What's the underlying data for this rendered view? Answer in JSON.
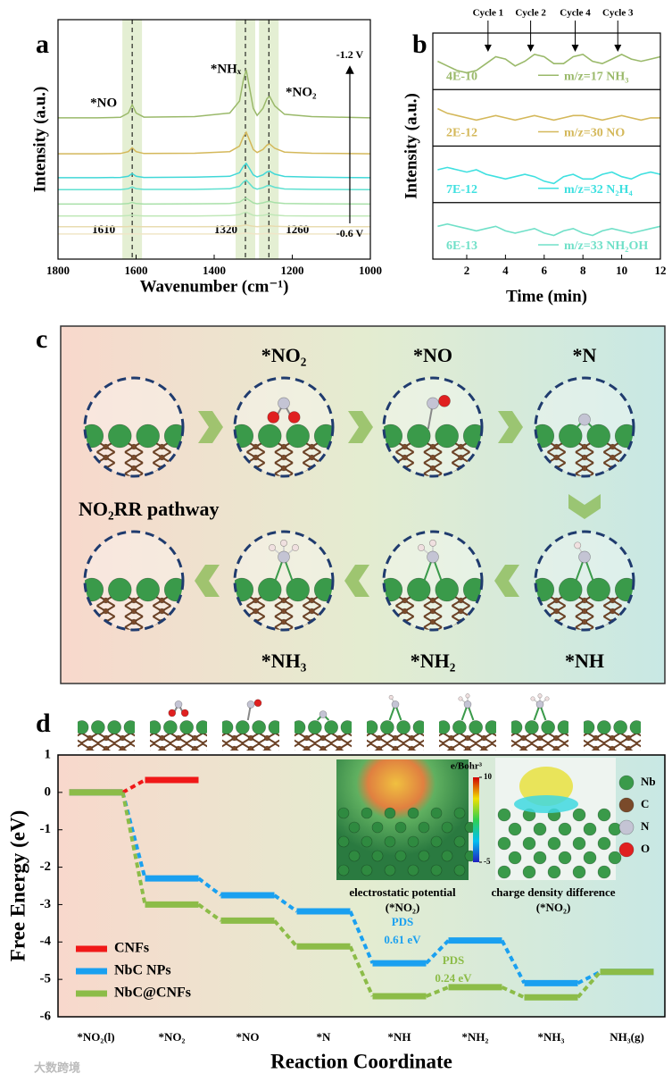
{
  "chart_data": [
    {
      "label": "a",
      "type": "line",
      "xlabel": "Wavenumber (cm⁻¹)",
      "ylabel": "Intensity (a.u.)",
      "xlim": [
        1800,
        1000
      ],
      "xticks": [
        1800,
        1600,
        1400,
        1200,
        1000
      ],
      "ylim": [
        0,
        10
      ],
      "peaks": [
        1610,
        1320,
        1260
      ],
      "peak_labels": [
        "*NO",
        "*NHₓ",
        "*NO₂"
      ],
      "potentials": [
        "-1.2 V",
        "-0.6 V"
      ],
      "x": [
        1800,
        1700,
        1640,
        1620,
        1610,
        1600,
        1580,
        1450,
        1360,
        1335,
        1325,
        1318,
        1310,
        1300,
        1290,
        1275,
        1265,
        1258,
        1245,
        1220,
        1150,
        1000
      ],
      "series": [
        {
          "color": "#9ab96a",
          "values": [
            5.9,
            5.9,
            5.92,
            6.1,
            6.45,
            6.1,
            5.93,
            5.95,
            6.1,
            6.6,
            7.5,
            7.9,
            7.2,
            6.3,
            6.0,
            6.3,
            6.7,
            6.8,
            6.4,
            6.05,
            5.95,
            5.9
          ]
        },
        {
          "color": "#d4b85a",
          "values": [
            4.4,
            4.4,
            4.41,
            4.49,
            4.65,
            4.49,
            4.41,
            4.42,
            4.49,
            4.72,
            5.12,
            5.3,
            4.99,
            4.58,
            4.45,
            4.58,
            4.76,
            4.81,
            4.63,
            4.47,
            4.42,
            4.4
          ]
        },
        {
          "color": "#40d8d8",
          "values": [
            3.4,
            3.4,
            3.41,
            3.46,
            3.57,
            3.46,
            3.41,
            3.42,
            3.46,
            3.61,
            3.88,
            4.0,
            3.79,
            3.52,
            3.43,
            3.52,
            3.64,
            3.67,
            3.55,
            3.45,
            3.42,
            3.4
          ]
        },
        {
          "color": "#5fe0d0",
          "values": [
            2.9,
            2.9,
            2.9,
            2.94,
            3.01,
            2.94,
            2.91,
            2.91,
            2.94,
            3.04,
            3.22,
            3.3,
            3.16,
            2.98,
            2.92,
            2.98,
            3.06,
            3.08,
            3.0,
            2.93,
            2.91,
            2.9
          ]
        },
        {
          "color": "#a8e0a8",
          "values": [
            2.3,
            2.3,
            2.3,
            2.32,
            2.37,
            2.32,
            2.3,
            2.31,
            2.32,
            2.38,
            2.49,
            2.54,
            2.46,
            2.35,
            2.31,
            2.35,
            2.4,
            2.41,
            2.36,
            2.32,
            2.31,
            2.3
          ]
        },
        {
          "color": "#c0e8b8",
          "values": [
            1.8,
            1.8,
            1.8,
            1.82,
            1.84,
            1.82,
            1.8,
            1.8,
            1.82,
            1.86,
            1.93,
            1.96,
            1.9,
            1.83,
            1.81,
            1.83,
            1.86,
            1.87,
            1.84,
            1.81,
            1.8,
            1.8
          ]
        },
        {
          "color": "#e8dcb0",
          "values": [
            1.35,
            1.35,
            1.35,
            1.36,
            1.37,
            1.36,
            1.35,
            1.35,
            1.36,
            1.38,
            1.41,
            1.43,
            1.4,
            1.37,
            1.35,
            1.37,
            1.38,
            1.39,
            1.37,
            1.36,
            1.35,
            1.35
          ]
        },
        {
          "color": "#f0e6c8",
          "values": [
            1.05,
            1.05,
            1.05,
            1.05,
            1.06,
            1.05,
            1.05,
            1.05,
            1.05,
            1.06,
            1.08,
            1.09,
            1.08,
            1.06,
            1.05,
            1.06,
            1.07,
            1.07,
            1.06,
            1.05,
            1.05,
            1.05
          ]
        }
      ]
    },
    {
      "label": "b",
      "type": "line",
      "xlabel": "Time (min)",
      "ylabel": "Intensity (a.u.)",
      "xlim": [
        0.25,
        12
      ],
      "xticks": [
        2,
        4,
        6,
        8,
        10,
        12
      ],
      "ylim": [
        0,
        1
      ],
      "cycles": [
        {
          "label": "Cycle 1",
          "x": 3.1
        },
        {
          "label": "Cycle 2",
          "x": 5.3
        },
        {
          "label": "Cycle 4",
          "x": 7.6
        },
        {
          "label": "Cycle 3",
          "x": 9.8
        }
      ],
      "x": [
        0.5,
        1,
        1.5,
        2,
        2.5,
        3,
        3.5,
        4,
        4.5,
        5,
        5.5,
        6,
        6.5,
        7,
        7.5,
        8,
        8.5,
        9,
        9.5,
        10,
        10.5,
        11,
        11.5,
        12
      ],
      "series": [
        {
          "name": "m/z=17 NH₃",
          "scale": "4E-10",
          "color": "#9ab96a",
          "values": [
            0.5,
            0.4,
            0.3,
            0.25,
            0.3,
            0.45,
            0.6,
            0.55,
            0.4,
            0.5,
            0.65,
            0.6,
            0.45,
            0.45,
            0.6,
            0.65,
            0.5,
            0.45,
            0.55,
            0.65,
            0.55,
            0.5,
            0.55,
            0.6
          ]
        },
        {
          "name": "m/z=30 NO",
          "scale": "2E-12",
          "color": "#d4b85a",
          "values": [
            0.7,
            0.6,
            0.55,
            0.5,
            0.45,
            0.5,
            0.55,
            0.5,
            0.45,
            0.5,
            0.55,
            0.5,
            0.45,
            0.5,
            0.55,
            0.55,
            0.5,
            0.45,
            0.5,
            0.55,
            0.5,
            0.45,
            0.5,
            0.5
          ]
        },
        {
          "name": "m/z=32 N₂H₄",
          "scale": "7E-12",
          "color": "#3fe0e0",
          "values": [
            0.6,
            0.65,
            0.6,
            0.55,
            0.6,
            0.5,
            0.45,
            0.4,
            0.45,
            0.5,
            0.45,
            0.35,
            0.3,
            0.45,
            0.5,
            0.4,
            0.4,
            0.5,
            0.55,
            0.45,
            0.4,
            0.5,
            0.55,
            0.5
          ]
        },
        {
          "name": "m/z=33 NH₂OH",
          "scale": "6E-13",
          "color": "#70e0c8",
          "values": [
            0.6,
            0.65,
            0.6,
            0.55,
            0.5,
            0.55,
            0.6,
            0.5,
            0.45,
            0.5,
            0.55,
            0.45,
            0.4,
            0.5,
            0.55,
            0.45,
            0.4,
            0.5,
            0.55,
            0.5,
            0.45,
            0.5,
            0.55,
            0.6
          ]
        }
      ]
    },
    {
      "label": "d",
      "type": "energy",
      "xlabel": "Reaction Coordinate",
      "ylabel": "Free Energy (eV)",
      "categories": [
        "*NO₂(l)",
        "*NO₂",
        "*NO",
        "*N",
        "*NH",
        "*NH₂",
        "*NH₃",
        "NH₃(g)"
      ],
      "ylim": [
        -6,
        1
      ],
      "yticks": [
        -6,
        -5,
        -4,
        -3,
        -2,
        -1,
        0,
        1
      ],
      "legend": "lower left",
      "series": [
        {
          "name": "CNFs",
          "color": "#f01818",
          "values": [
            0,
            0.33,
            null,
            null,
            null,
            null,
            null,
            null
          ]
        },
        {
          "name": "NbC NPs",
          "color": "#1aa0f0",
          "values": [
            0,
            -2.3,
            -2.75,
            -3.18,
            -4.57,
            -3.96,
            -5.1,
            -4.8
          ]
        },
        {
          "name": "NbC@CNFs",
          "color": "#8cbc48",
          "values": [
            0,
            -3.0,
            -3.43,
            -4.12,
            -5.45,
            -5.21,
            -5.48,
            -4.8
          ]
        }
      ],
      "pds": [
        {
          "title": "PDS",
          "text": "0.61 eV",
          "color": "#1aa0f0"
        },
        {
          "title": "PDS",
          "text": "0.24 eV",
          "color": "#8cbc48"
        }
      ],
      "insets": {
        "colorbar_unit": "e/Bohr³",
        "colorbar_ticks": [
          10,
          -5
        ],
        "captions": [
          "electrostatic potential",
          "(*NO₂)",
          "charge density difference",
          "(*NO₂)"
        ]
      },
      "atoms": [
        {
          "name": "Nb",
          "color": "#3a9a4a"
        },
        {
          "name": "C",
          "color": "#7a4a2a"
        },
        {
          "name": "N",
          "color": "#c4c4d4"
        },
        {
          "name": "O",
          "color": "#e02020"
        }
      ]
    }
  ],
  "pathway": {
    "label": "c",
    "title": "NO₂RR pathway",
    "steps": [
      "*NO₂",
      "*NO",
      "*N",
      "*NH",
      "*NH₂",
      "*NH₃"
    ]
  },
  "watermark": "大数跨境"
}
